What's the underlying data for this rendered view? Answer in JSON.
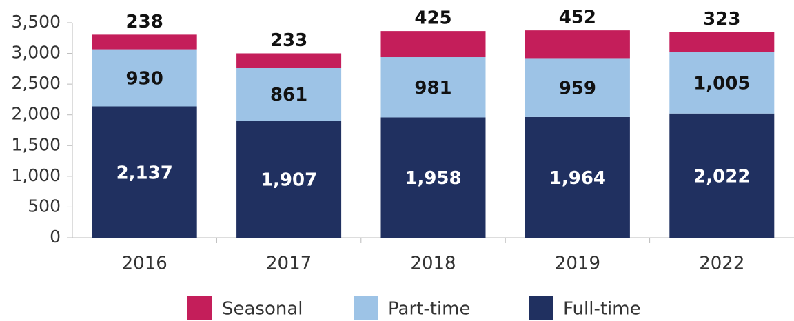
{
  "chart_data": {
    "type": "stacked_bar",
    "categories": [
      "2016",
      "2017",
      "2018",
      "2019",
      "2022"
    ],
    "series": [
      {
        "name": "Full-time",
        "color": "#203060",
        "values": [
          2137,
          1907,
          1958,
          1964,
          2022
        ],
        "value_labels": [
          "2,137",
          "1,907",
          "1,958",
          "1,964",
          "2,022"
        ]
      },
      {
        "name": "Part-time",
        "color": "#9dc3e6",
        "values": [
          930,
          861,
          981,
          959,
          1005
        ],
        "value_labels": [
          "930",
          "861",
          "981",
          "959",
          "1,005"
        ]
      },
      {
        "name": "Seasonal",
        "color": "#c41e5a",
        "values": [
          238,
          233,
          425,
          452,
          323
        ],
        "value_labels": [
          "238",
          "233",
          "425",
          "452",
          "323"
        ]
      }
    ],
    "ylim": [
      0,
      3500
    ],
    "yticks": [
      0,
      500,
      {
        "value": 1000,
        "label": "1,000"
      },
      {
        "value": 1500,
        "label": "1,500"
      },
      {
        "value": 2000,
        "label": "2,000"
      },
      {
        "value": 2500,
        "label": "2,500"
      },
      {
        "value": 3000,
        "label": "3,000"
      },
      {
        "value": 3500,
        "label": "3,500"
      }
    ],
    "legend": "bottom"
  }
}
